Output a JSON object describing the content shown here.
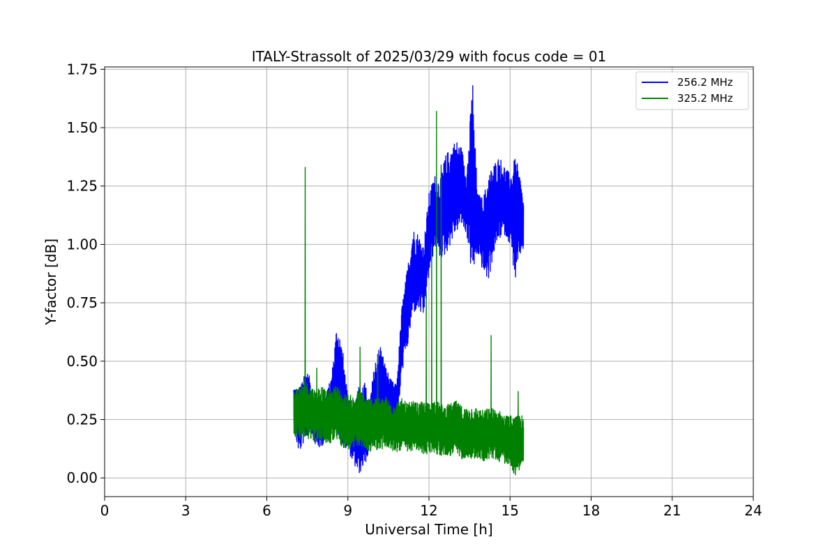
{
  "chart_data": {
    "type": "line",
    "title": "ITALY-Strassolt of 2025/03/29 with focus code = 01",
    "xlabel": "Universal Time [h]",
    "ylabel": "Y-factor [dB]",
    "xlim": [
      0,
      24
    ],
    "ylim": [
      -0.08,
      1.76
    ],
    "xticks": [
      0,
      3,
      6,
      9,
      12,
      15,
      18,
      21,
      24
    ],
    "yticks": [
      0.0,
      0.25,
      0.5,
      0.75,
      1.0,
      1.25,
      1.5,
      1.75
    ],
    "ytick_labels": [
      "0.00",
      "0.25",
      "0.50",
      "0.75",
      "1.00",
      "1.25",
      "1.50",
      "1.75"
    ],
    "grid": true,
    "legend_position": "top-right",
    "series": [
      {
        "name": "256.2 MHz",
        "color": "#0000ff",
        "x": [
          7.0,
          7.2,
          7.4,
          7.6,
          7.8,
          8.0,
          8.2,
          8.4,
          8.6,
          8.8,
          9.0,
          9.2,
          9.4,
          9.6,
          9.8,
          10.0,
          10.2,
          10.4,
          10.6,
          10.8,
          11.0,
          11.2,
          11.4,
          11.6,
          11.8,
          12.0,
          12.2,
          12.4,
          12.6,
          12.8,
          13.0,
          13.2,
          13.4,
          13.6,
          13.8,
          14.0,
          14.2,
          14.4,
          14.6,
          14.8,
          15.0,
          15.2,
          15.4,
          15.5
        ],
        "upper": [
          0.4,
          0.38,
          0.48,
          0.43,
          0.34,
          0.32,
          0.36,
          0.44,
          0.68,
          0.56,
          0.34,
          0.3,
          0.4,
          0.42,
          0.33,
          0.5,
          0.58,
          0.48,
          0.42,
          0.4,
          0.74,
          0.9,
          1.07,
          1.05,
          1.0,
          1.22,
          1.3,
          1.28,
          1.38,
          1.42,
          1.45,
          1.42,
          1.32,
          1.68,
          1.22,
          1.2,
          1.3,
          1.35,
          1.38,
          1.34,
          1.3,
          1.38,
          1.28,
          1.18
        ],
        "lower": [
          0.2,
          0.1,
          0.16,
          0.2,
          0.14,
          0.12,
          0.18,
          0.22,
          0.18,
          0.14,
          0.12,
          0.06,
          0.01,
          0.05,
          0.1,
          0.16,
          0.2,
          0.22,
          0.18,
          0.2,
          0.45,
          0.55,
          0.7,
          0.72,
          0.68,
          0.86,
          0.98,
          0.94,
          0.95,
          1.0,
          1.05,
          1.08,
          1.04,
          0.85,
          0.96,
          0.88,
          0.84,
          0.96,
          1.02,
          1.04,
          1.0,
          0.84,
          0.96,
          0.98
        ],
        "spikes": [
          {
            "x": 13.62,
            "y": 1.68
          },
          {
            "x": 11.85,
            "y": 0.78
          }
        ]
      },
      {
        "name": "325.2 MHz",
        "color": "#008000",
        "x": [
          7.0,
          7.2,
          7.4,
          7.6,
          7.8,
          8.0,
          8.2,
          8.4,
          8.6,
          8.8,
          9.0,
          9.2,
          9.4,
          9.6,
          9.8,
          10.0,
          10.2,
          10.4,
          10.6,
          10.8,
          11.0,
          11.2,
          11.4,
          11.6,
          11.8,
          12.0,
          12.2,
          12.4,
          12.6,
          12.8,
          13.0,
          13.2,
          13.4,
          13.6,
          13.8,
          14.0,
          14.2,
          14.4,
          14.6,
          14.8,
          15.0,
          15.2,
          15.4,
          15.5
        ],
        "upper": [
          0.38,
          0.4,
          0.42,
          0.4,
          0.38,
          0.4,
          0.37,
          0.38,
          0.4,
          0.36,
          0.36,
          0.35,
          0.38,
          0.36,
          0.34,
          0.36,
          0.34,
          0.35,
          0.33,
          0.33,
          0.34,
          0.32,
          0.33,
          0.32,
          0.33,
          0.32,
          0.34,
          0.32,
          0.31,
          0.32,
          0.33,
          0.31,
          0.3,
          0.31,
          0.3,
          0.29,
          0.3,
          0.3,
          0.29,
          0.27,
          0.27,
          0.26,
          0.28,
          0.25
        ],
        "lower": [
          0.18,
          0.17,
          0.16,
          0.17,
          0.15,
          0.16,
          0.14,
          0.15,
          0.16,
          0.13,
          0.12,
          0.12,
          0.14,
          0.12,
          0.11,
          0.12,
          0.12,
          0.13,
          0.11,
          0.11,
          0.12,
          0.1,
          0.12,
          0.11,
          0.1,
          0.1,
          0.11,
          0.09,
          0.1,
          0.09,
          0.1,
          0.08,
          0.09,
          0.08,
          0.08,
          0.07,
          0.08,
          0.08,
          0.07,
          0.06,
          0.06,
          0.0,
          0.05,
          0.05
        ],
        "spikes": [
          {
            "x": 7.42,
            "y": 1.33
          },
          {
            "x": 12.28,
            "y": 1.57
          },
          {
            "x": 12.45,
            "y": 1.34
          },
          {
            "x": 11.9,
            "y": 0.8
          },
          {
            "x": 12.1,
            "y": 1.0
          },
          {
            "x": 14.3,
            "y": 0.61
          },
          {
            "x": 9.45,
            "y": 0.56
          },
          {
            "x": 10.1,
            "y": 0.53
          },
          {
            "x": 15.3,
            "y": 0.37
          },
          {
            "x": 7.85,
            "y": 0.47
          }
        ]
      }
    ]
  }
}
